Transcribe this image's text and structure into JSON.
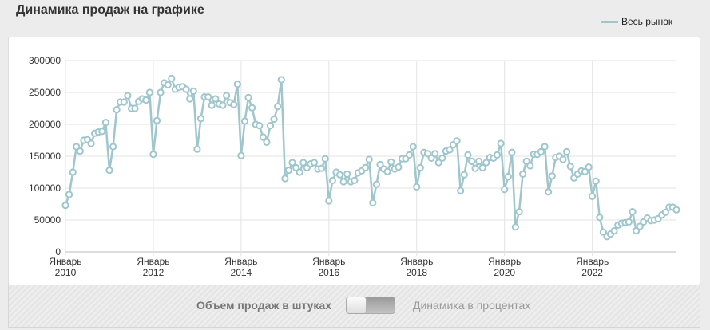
{
  "header": {
    "title": "Динамика продаж на графике"
  },
  "legend": {
    "label": "Весь рынок",
    "color": "#9fc6cd"
  },
  "controls": {
    "left_label": "Объем продаж в штуках",
    "right_label": "Динамика в процентах"
  },
  "chart_data": {
    "type": "line",
    "title": "",
    "xlabel": "",
    "ylabel": "",
    "ylim": [
      0,
      300000
    ],
    "xlim": [
      "2010-01",
      "2023-12"
    ],
    "yticks": [
      0,
      50000,
      100000,
      150000,
      200000,
      250000,
      300000
    ],
    "ytick_labels": [
      "0",
      "50000",
      "100000",
      "150000",
      "200000",
      "250000",
      "300000"
    ],
    "xticks": [
      {
        "x": "2010-01",
        "line1": "Январь",
        "line2": "2010"
      },
      {
        "x": "2012-01",
        "line1": "Январь",
        "line2": "2012"
      },
      {
        "x": "2014-01",
        "line1": "Январь",
        "line2": "2014"
      },
      {
        "x": "2016-01",
        "line1": "Январь",
        "line2": "2016"
      },
      {
        "x": "2018-01",
        "line1": "Январь",
        "line2": "2018"
      },
      {
        "x": "2020-01",
        "line1": "Январь",
        "line2": "2020"
      },
      {
        "x": "2022-01",
        "line1": "Январь",
        "line2": "2022"
      }
    ],
    "grid": true,
    "legend_position": "top-right",
    "series": [
      {
        "name": "Весь рынок",
        "color": "#9fc6cd",
        "start": "2010-01",
        "values": [
          73000,
          90000,
          125000,
          165000,
          158000,
          175000,
          176000,
          170000,
          186000,
          188000,
          189000,
          203000,
          128000,
          165000,
          223000,
          235000,
          235000,
          245000,
          225000,
          225000,
          236000,
          240000,
          238000,
          250000,
          153000,
          206000,
          250000,
          265000,
          262000,
          272000,
          255000,
          258000,
          259000,
          255000,
          240000,
          252000,
          161000,
          209000,
          243000,
          243000,
          230000,
          240000,
          232000,
          230000,
          245000,
          234000,
          231000,
          263000,
          151000,
          205000,
          242000,
          226000,
          200000,
          198000,
          180000,
          172000,
          198000,
          208000,
          228000,
          270000,
          115000,
          128000,
          140000,
          132000,
          125000,
          140000,
          132000,
          138000,
          140000,
          130000,
          131000,
          146000,
          80000,
          112000,
          125000,
          121000,
          110000,
          122000,
          110000,
          112000,
          124000,
          127000,
          132000,
          145000,
          77000,
          106000,
          137000,
          130000,
          126000,
          141000,
          130000,
          133000,
          146000,
          146000,
          152000,
          165000,
          102000,
          132000,
          156000,
          154000,
          147000,
          154000,
          140000,
          147000,
          158000,
          160000,
          168000,
          174000,
          96000,
          121000,
          152000,
          142000,
          131000,
          142000,
          132000,
          140000,
          148000,
          147000,
          152000,
          170000,
          98000,
          118000,
          156000,
          39000,
          63000,
          122000,
          142000,
          135000,
          153000,
          153000,
          157000,
          165000,
          94000,
          119000,
          148000,
          150000,
          145000,
          157000,
          134000,
          116000,
          122000,
          127000,
          126000,
          133000,
          87000,
          111000,
          54000,
          31000,
          24000,
          28000,
          33000,
          42000,
          45000,
          46000,
          47000,
          63000,
          33000,
          40000,
          47000,
          53000,
          49000,
          50000,
          52000,
          58000,
          62000,
          70000,
          70000,
          66000
        ]
      }
    ]
  }
}
